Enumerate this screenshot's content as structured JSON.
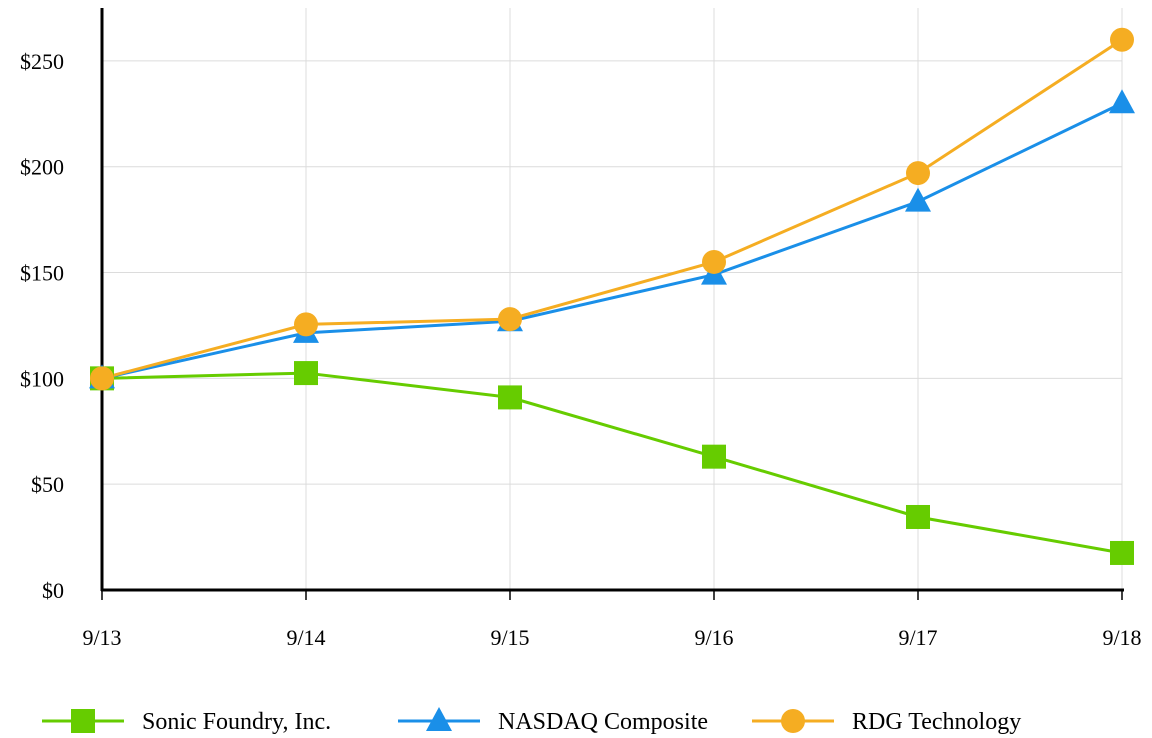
{
  "chart_data": {
    "type": "line",
    "title": "",
    "xlabel": "",
    "ylabel": "",
    "categories": [
      "9/13",
      "9/14",
      "9/15",
      "9/16",
      "9/17",
      "9/18"
    ],
    "ylim": [
      0,
      275
    ],
    "yticks": [
      0,
      50,
      100,
      150,
      200,
      250
    ],
    "ytick_labels": [
      "$0",
      "$50",
      "$100",
      "$150",
      "$200",
      "$250"
    ],
    "grid": true,
    "legend_position": "bottom",
    "series": [
      {
        "name": "Sonic Foundry, Inc.",
        "marker": "square",
        "color": "#66cc00",
        "values": [
          100,
          102.5,
          91,
          63,
          34.5,
          17.5
        ]
      },
      {
        "name": "NASDAQ Composite",
        "marker": "triangle",
        "color": "#1a8fe8",
        "values": [
          100,
          121.5,
          127,
          149,
          183.5,
          230
        ]
      },
      {
        "name": "RDG Technology",
        "marker": "circle",
        "color": "#f5ad22",
        "values": [
          100,
          125.5,
          128,
          155,
          197,
          260
        ]
      }
    ]
  }
}
